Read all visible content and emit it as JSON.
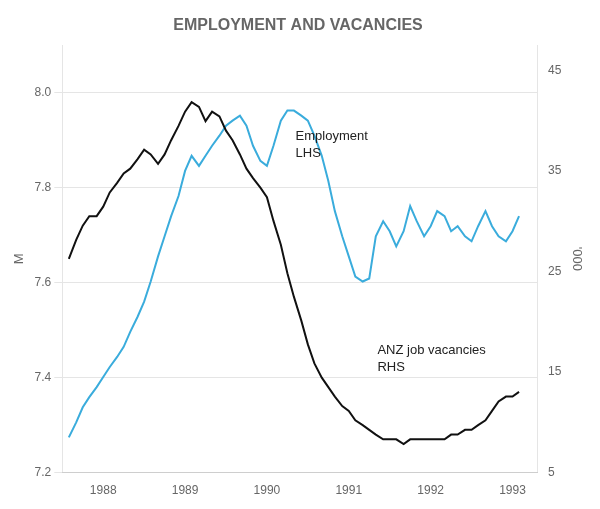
{
  "chart_data": {
    "type": "line",
    "title": "EMPLOYMENT AND VACANCIES",
    "ylabel": "M",
    "y2label": "'000",
    "x": [
      1987.58,
      1987.67,
      1987.75,
      1987.83,
      1987.92,
      1988.0,
      1988.08,
      1988.17,
      1988.25,
      1988.33,
      1988.42,
      1988.5,
      1988.58,
      1988.67,
      1988.75,
      1988.83,
      1988.92,
      1989.0,
      1989.08,
      1989.17,
      1989.25,
      1989.33,
      1989.42,
      1989.5,
      1989.58,
      1989.67,
      1989.75,
      1989.83,
      1989.92,
      1990.0,
      1990.08,
      1990.17,
      1990.25,
      1990.33,
      1990.42,
      1990.5,
      1990.58,
      1990.67,
      1990.75,
      1990.83,
      1990.92,
      1991.0,
      1991.08,
      1991.17,
      1991.25,
      1991.33,
      1991.42,
      1991.5,
      1991.58,
      1991.67,
      1991.75,
      1991.83,
      1991.92,
      1992.0,
      1992.08,
      1992.17,
      1992.25,
      1992.33,
      1992.42,
      1992.5,
      1992.58,
      1992.67,
      1992.75,
      1992.83,
      1992.92,
      1993.0,
      1993.08
    ],
    "series": [
      {
        "name": "Employment",
        "color": "#111111",
        "axis": "y",
        "values": [
          7.65,
          7.69,
          7.72,
          7.74,
          7.74,
          7.76,
          7.79,
          7.81,
          7.83,
          7.84,
          7.86,
          7.88,
          7.87,
          7.85,
          7.87,
          7.9,
          7.93,
          7.96,
          7.98,
          7.97,
          7.94,
          7.96,
          7.95,
          7.92,
          7.9,
          7.87,
          7.84,
          7.82,
          7.8,
          7.78,
          7.73,
          7.68,
          7.62,
          7.57,
          7.52,
          7.47,
          7.43,
          7.4,
          7.38,
          7.36,
          7.34,
          7.33,
          7.31,
          7.3,
          7.29,
          7.28,
          7.27,
          7.27,
          7.27,
          7.26,
          7.27,
          7.27,
          7.27,
          7.27,
          7.27,
          7.27,
          7.28,
          7.28,
          7.29,
          7.29,
          7.3,
          7.31,
          7.33,
          7.35,
          7.36,
          7.36,
          7.37
        ]
      },
      {
        "name": "ANZ job vacancies",
        "color": "#3aacdc",
        "axis": "y2",
        "values": [
          8.5,
          10.0,
          11.5,
          12.5,
          13.5,
          14.5,
          15.5,
          16.5,
          17.5,
          19.0,
          20.5,
          22.0,
          24.0,
          26.5,
          28.5,
          30.5,
          32.5,
          35.0,
          36.5,
          35.5,
          36.5,
          37.5,
          38.5,
          39.5,
          40.0,
          40.5,
          39.5,
          37.5,
          36.0,
          35.5,
          37.5,
          40.0,
          41.0,
          41.0,
          40.5,
          40.0,
          38.5,
          36.5,
          34.0,
          31.0,
          28.5,
          26.5,
          24.5,
          24.0,
          24.3,
          28.5,
          30.0,
          29.0,
          27.5,
          29.0,
          31.5,
          30.0,
          28.5,
          29.5,
          31.0,
          30.5,
          29.0,
          29.5,
          28.5,
          28.0,
          29.5,
          31.0,
          29.5,
          28.5,
          28.0,
          29.0,
          30.5
        ]
      }
    ],
    "xlim": [
      1987.5,
      1993.3
    ],
    "xticks": [
      1988,
      1989,
      1990,
      1991,
      1992,
      1993
    ],
    "ylim": [
      7.2,
      8.1
    ],
    "yticks": [
      7.2,
      7.4,
      7.6,
      7.8,
      {
        "value": 8.0,
        "label": "8.0"
      }
    ],
    "y2lim": [
      5,
      47.5
    ],
    "y2ticks": [
      5,
      15,
      25,
      35,
      45
    ],
    "grid": true,
    "annotations": [
      {
        "text": "Employment\nLHS",
        "x": 1990.35,
        "y": 7.89
      },
      {
        "text": "ANZ job vacancies\nRHS",
        "x": 1991.35,
        "y": 7.44
      }
    ]
  }
}
